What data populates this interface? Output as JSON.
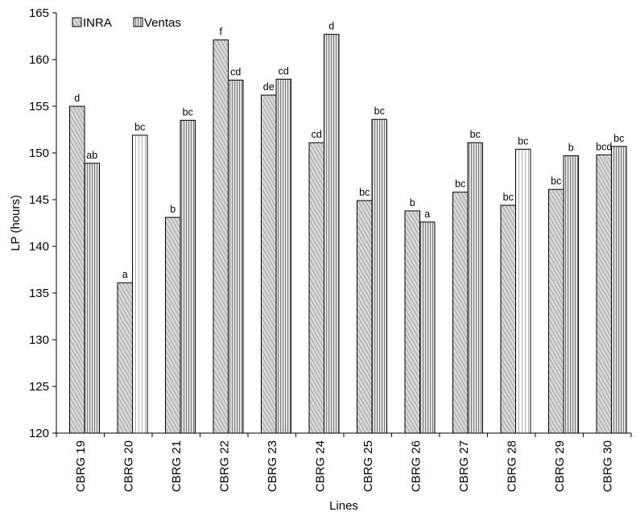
{
  "chart_data": {
    "type": "bar",
    "xlabel": "Lines",
    "ylabel": "LP (hours)",
    "ylim": [
      120,
      165
    ],
    "yticks": [
      120,
      125,
      130,
      135,
      140,
      145,
      150,
      155,
      160,
      165
    ],
    "grid": false,
    "legend_position": "top-left",
    "categories": [
      "CBRG 19",
      "CBRG 20",
      "CBRG 21",
      "CBRG 22",
      "CBRG 23",
      "CBRG 24",
      "CBRG 25",
      "CBRG 26",
      "CBRG 27",
      "CBRG 28",
      "CBRG 29",
      "CBRG 30"
    ],
    "series": [
      {
        "name": "INRA",
        "values": [
          155.0,
          136.1,
          143.1,
          162.1,
          156.2,
          151.1,
          144.9,
          143.8,
          145.8,
          144.4,
          146.1,
          149.8
        ],
        "labels": [
          "d",
          "a",
          "b",
          "f",
          "de",
          "cd",
          "bc",
          "b",
          "bc",
          "bc",
          "bc",
          "bcd"
        ]
      },
      {
        "name": "Ventas",
        "values": [
          148.9,
          151.9,
          153.5,
          157.8,
          157.9,
          162.7,
          153.6,
          142.6,
          151.1,
          150.4,
          149.7,
          150.7
        ],
        "labels": [
          "ab",
          "bc",
          "bc",
          "cd",
          "cd",
          "d",
          "bc",
          "a",
          "bc",
          "bc",
          "b",
          "bc"
        ]
      }
    ]
  }
}
